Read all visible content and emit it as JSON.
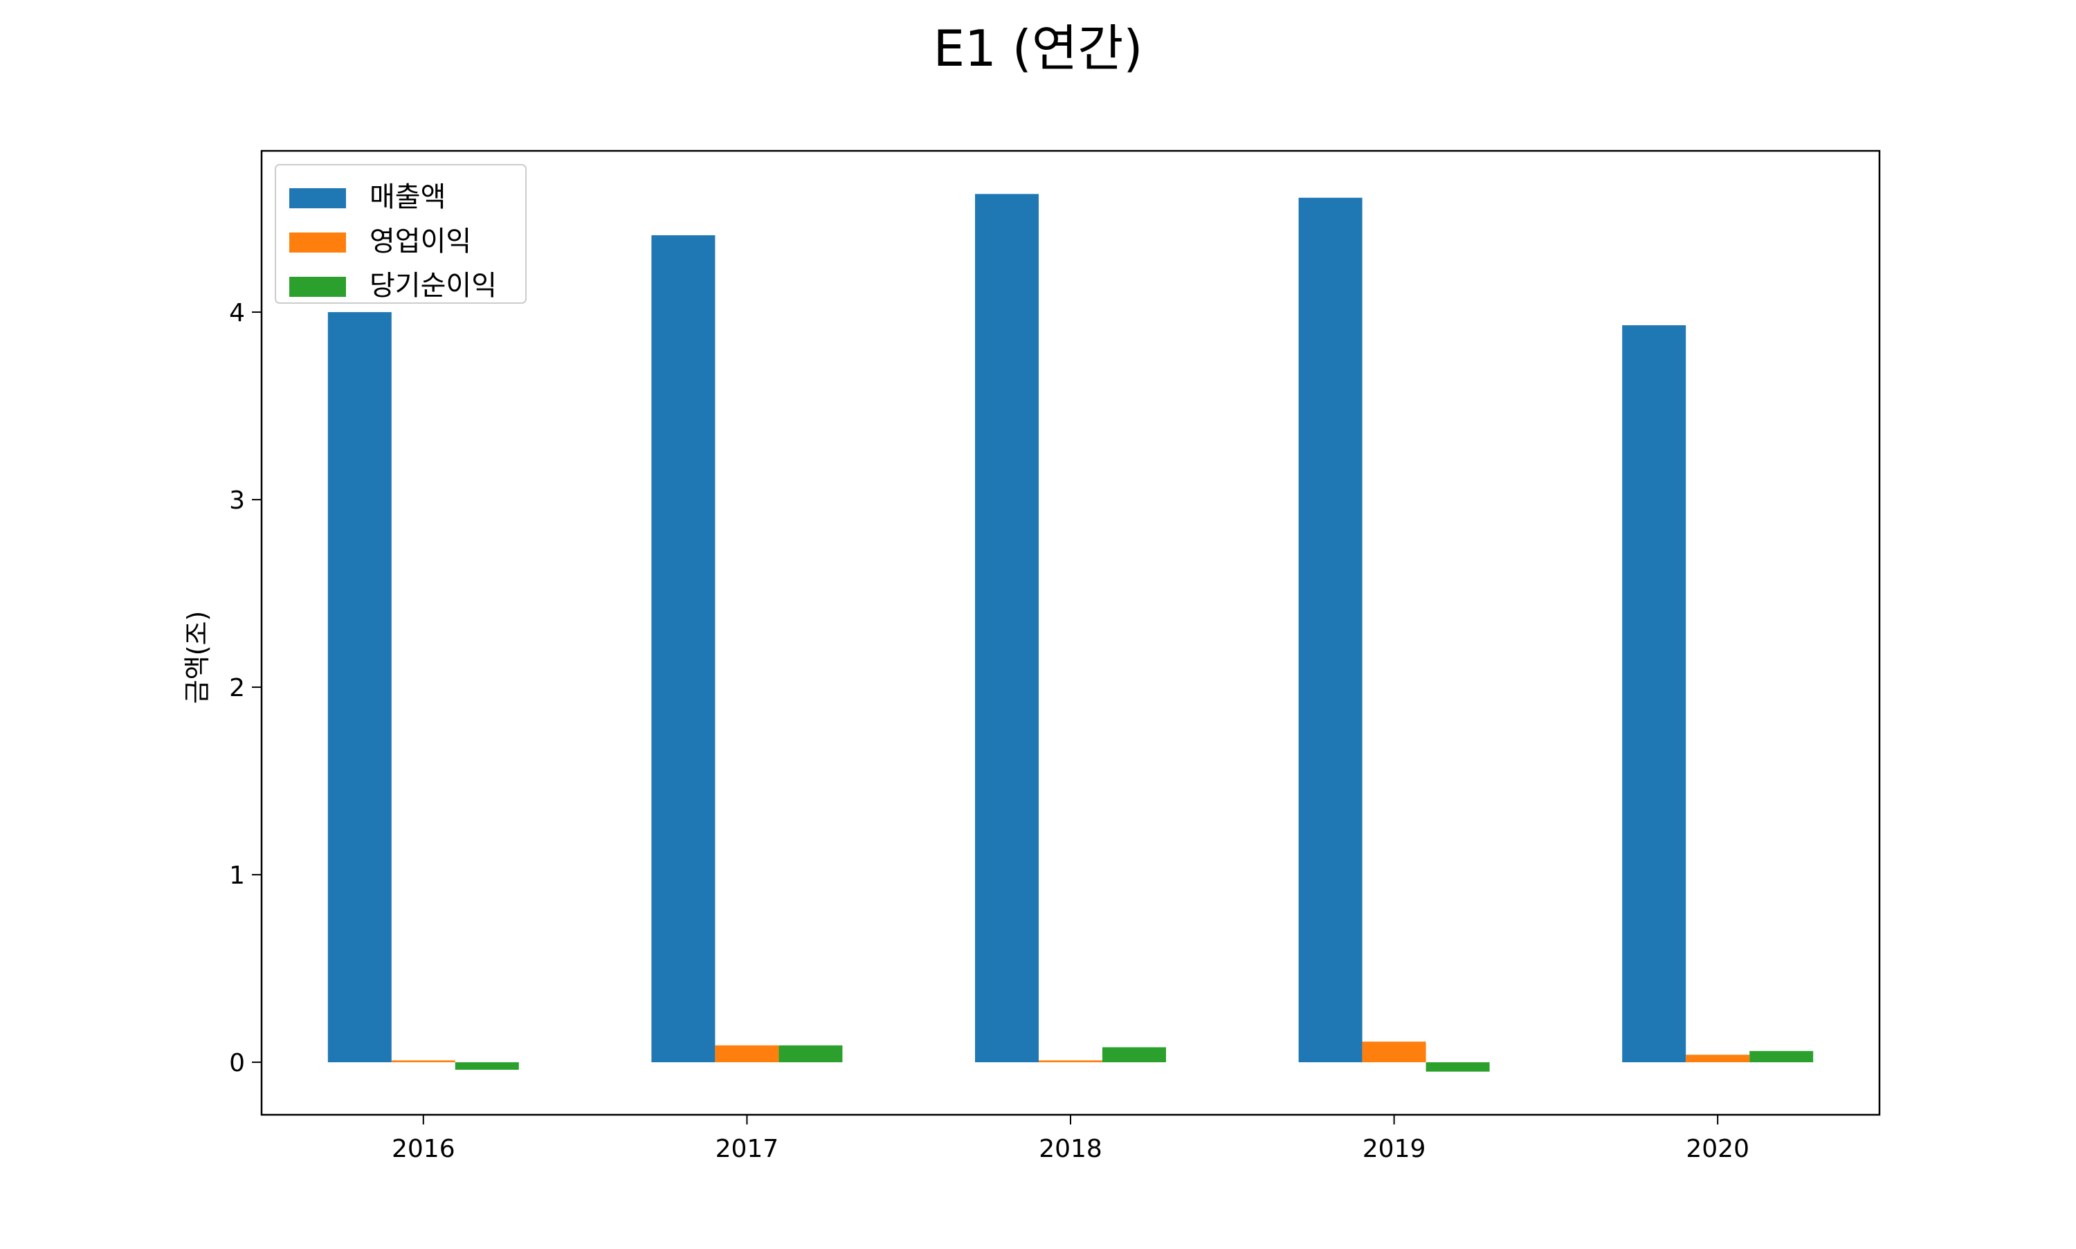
{
  "chart_data": {
    "type": "bar",
    "title": "E1 (연간)",
    "xlabel": "",
    "ylabel": "금액(조)",
    "categories": [
      "2016",
      "2017",
      "2018",
      "2019",
      "2020"
    ],
    "series": [
      {
        "name": "매출액",
        "color": "#1f77b4",
        "values": [
          4.0,
          4.41,
          4.63,
          4.61,
          3.93
        ]
      },
      {
        "name": "영업이익",
        "color": "#ff7f0e",
        "values": [
          0.01,
          0.09,
          0.01,
          0.11,
          0.04
        ]
      },
      {
        "name": "당기순이익",
        "color": "#2ca02c",
        "values": [
          -0.04,
          0.09,
          0.08,
          -0.05,
          0.06
        ]
      }
    ],
    "ylim": [
      -0.28,
      4.86
    ],
    "yticks": [
      0,
      1,
      2,
      3,
      4
    ],
    "legend_position": "top-left",
    "grid": false
  }
}
